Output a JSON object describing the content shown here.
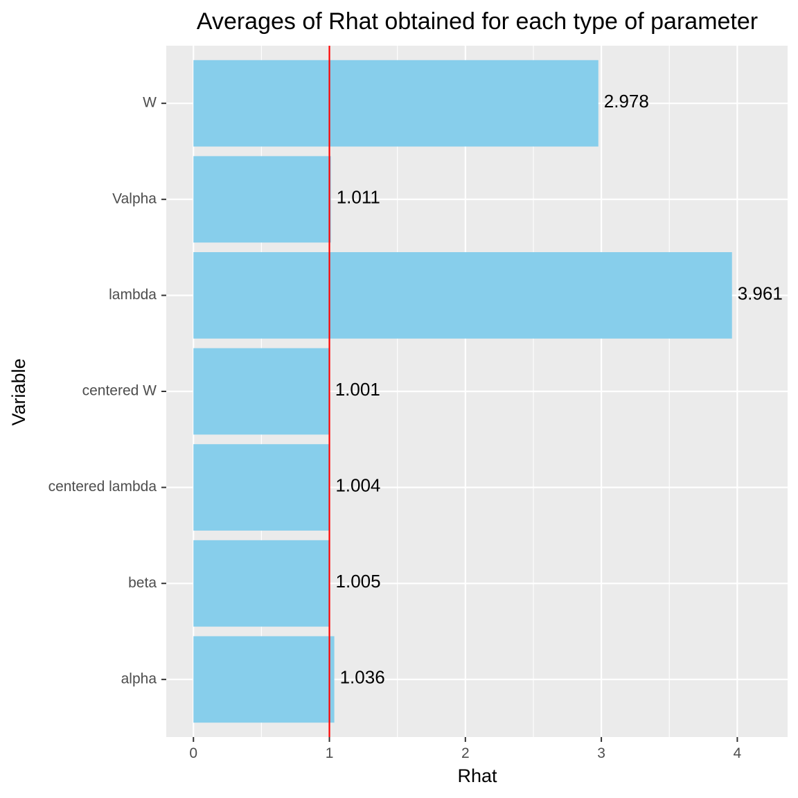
{
  "chart_data": {
    "type": "bar",
    "orientation": "horizontal",
    "title": "Averages of Rhat obtained for each type of parameter",
    "xlabel": "Rhat",
    "ylabel": "Variable",
    "categories": [
      "W",
      "Valpha",
      "lambda",
      "centered W",
      "centered lambda",
      "beta",
      "alpha"
    ],
    "values": [
      2.978,
      1.011,
      3.961,
      1.001,
      1.004,
      1.005,
      1.036
    ],
    "data_labels": [
      "2.978",
      "1.011",
      "3.961",
      "1.001",
      "1.004",
      "1.005",
      "1.036"
    ],
    "xlim": [
      -0.2,
      4.37
    ],
    "x_ticks": [
      0,
      1,
      2,
      3,
      4
    ],
    "x_tick_labels": [
      "0",
      "1",
      "2",
      "3",
      "4"
    ],
    "reference_line": {
      "x": 1,
      "color": "#ff0000"
    },
    "grid": true,
    "legend": "none",
    "colors": {
      "bar": "#87ceeb",
      "panel_background": "#ebebeb",
      "grid": "#ffffff",
      "tick_text": "#4d4d4d",
      "text": "#000000"
    }
  }
}
